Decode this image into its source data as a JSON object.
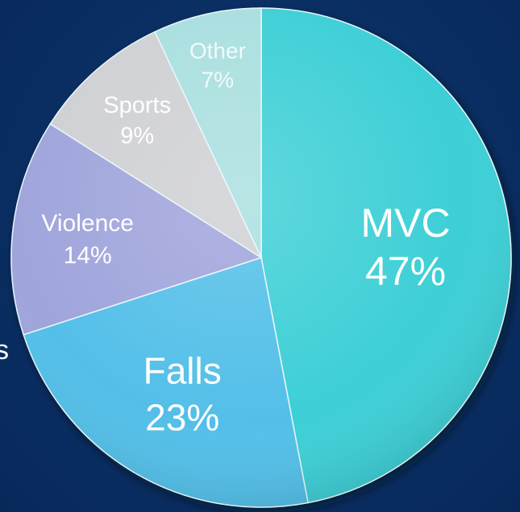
{
  "chart_data": {
    "type": "pie",
    "categories": [
      "MVC",
      "Falls",
      "Violence",
      "Sports",
      "Other"
    ],
    "values": [
      47,
      23,
      14,
      9,
      7
    ],
    "value_labels": [
      "47%",
      "23%",
      "14%",
      "9%",
      "7%"
    ],
    "colors": [
      "#3ccfd6",
      "#52bfe8",
      "#9fa4db",
      "#cfd0d3",
      "#a9dfdf"
    ],
    "title": "",
    "legend": "none"
  },
  "edge_text": "s"
}
